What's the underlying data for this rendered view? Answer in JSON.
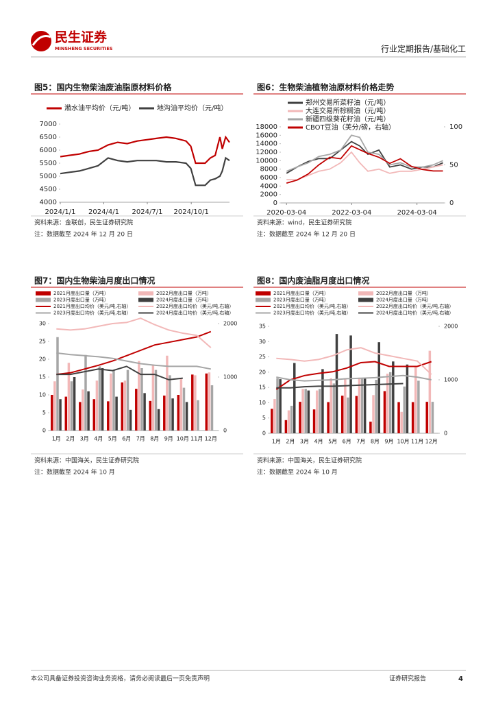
{
  "header": {
    "brand": "民生证券",
    "brand_en": "MINSHENG SECURITIES",
    "report_type": "行业定期报告/基础化工"
  },
  "chart_data": [
    {
      "type": "line",
      "title": "图5：国内生物柴油废油脂原材料价格",
      "source": "资料来源：金联创，民生证券研究院",
      "note": "注：数据截至 2024 年 12 月 20 日",
      "x": [
        "2024-01-01",
        "2024-01-20",
        "2024-02-10",
        "2024-03-01",
        "2024-03-20",
        "2024-04-10",
        "2024-04-30",
        "2024-05-20",
        "2024-06-10",
        "2024-06-30",
        "2024-07-20",
        "2024-08-10",
        "2024-08-30",
        "2024-09-20",
        "2024-09-30",
        "2024-10-10",
        "2024-10-30",
        "2024-11-10",
        "2024-11-20",
        "2024-11-30",
        "2024-12-05",
        "2024-12-12",
        "2024-12-20"
      ],
      "series": [
        {
          "name": "潲水油平均价（元/吨）",
          "color": "#c00000",
          "values": [
            5750,
            5800,
            5850,
            5950,
            6000,
            6200,
            6300,
            6250,
            6350,
            6400,
            6450,
            6500,
            6450,
            6350,
            6150,
            5500,
            5500,
            5700,
            5800,
            6500,
            6050,
            6500,
            6300
          ]
        },
        {
          "name": "地沟油平均价（元/吨）",
          "color": "#404040",
          "values": [
            5100,
            5150,
            5200,
            5300,
            5400,
            5700,
            5600,
            5550,
            5600,
            5600,
            5600,
            5550,
            5550,
            5500,
            5300,
            4650,
            4650,
            4850,
            4900,
            5000,
            5200,
            5700,
            5600
          ]
        }
      ],
      "xlim": [
        "2024-01-01",
        "2024-12-20"
      ],
      "xticks": [
        {
          "value": "2024-01-01",
          "label": "2024/1/1"
        },
        {
          "value": "2024-04-01",
          "label": "2024/4/1"
        },
        {
          "value": "2024-07-01",
          "label": "2024/7/1"
        },
        {
          "value": "2024-10-01",
          "label": "2024/10/1"
        }
      ],
      "ylim": [
        4000,
        7000
      ],
      "yticks": [
        4000,
        4500,
        5000,
        5500,
        6000,
        6500,
        7000
      ],
      "grid": false
    },
    {
      "type": "line",
      "title": "图6：生物柴油植物油原材料价格走势",
      "source": "资料来源：wind，民生证券研究院",
      "note": "注：数据截至 2024 年 12 月 20 日",
      "x": [
        "2020-03-04",
        "2020-07-01",
        "2020-11-02",
        "2021-03-01",
        "2021-07-01",
        "2021-11-01",
        "2022-03-01",
        "2022-06-01",
        "2022-09-01",
        "2023-01-03",
        "2023-05-04",
        "2023-09-01",
        "2024-01-02",
        "2024-05-06",
        "2024-09-02",
        "2024-12-20"
      ],
      "series": [
        {
          "name": "郑州交易所菜籽油（元/吨）",
          "color": "#404040",
          "values": [
            7000,
            8500,
            9800,
            10500,
            10500,
            12500,
            14500,
            13500,
            11500,
            12500,
            8500,
            9000,
            8000,
            8500,
            8500,
            9500
          ]
        },
        {
          "name": "大连交易所棕榈油（元/吨）",
          "color": "#f2b8b8",
          "values": [
            5500,
            5500,
            6500,
            7500,
            8000,
            9500,
            12000,
            9500,
            7500,
            8000,
            7000,
            7500,
            7500,
            8000,
            8500,
            9000
          ]
        },
        {
          "name": "新疆四级葵花籽油（元/吨）",
          "color": "#a6a6a6",
          "values": [
            7500,
            8500,
            9500,
            11000,
            11500,
            12500,
            16000,
            15500,
            12000,
            11500,
            9000,
            9500,
            8500,
            8500,
            9000,
            10000
          ]
        },
        {
          "name": "CBOT豆油（美分/磅，右轴）",
          "color": "#c00000",
          "axis": "y2",
          "values": [
            26,
            30,
            38,
            50,
            60,
            58,
            75,
            70,
            65,
            60,
            52,
            58,
            48,
            44,
            42,
            42
          ]
        }
      ],
      "xlim": [
        "2020-01-01",
        "2024-12-31"
      ],
      "xticks": [
        "2020-03-04",
        "2022-03-04",
        "2024-03-04"
      ],
      "ylim": [
        0,
        18000
      ],
      "yticks": [
        0,
        2000,
        4000,
        6000,
        8000,
        10000,
        12000,
        14000,
        16000,
        18000
      ],
      "y2lim": [
        0,
        100
      ],
      "y2ticks": [
        0,
        50,
        100
      ],
      "grid": false
    },
    {
      "type": "bar",
      "title": "图7：国内生物柴油月度出口情况",
      "source": "资料来源：中国海关，民生证券研究院",
      "note": "注：数据截至 2024 年 10 月",
      "categories": [
        "1月",
        "2月",
        "3月",
        "4月",
        "5月",
        "6月",
        "7月",
        "8月",
        "9月",
        "10月",
        "11月",
        "12月"
      ],
      "series": [
        {
          "name": "2021月度出口量（万吨）",
          "color": "#c00000",
          "values": [
            10,
            9.5,
            8,
            8.8,
            8.2,
            13.5,
            11.7,
            8.3,
            9.8,
            10,
            15.7,
            16
          ]
        },
        {
          "name": "2022月度出口量（万吨）",
          "color": "#f2b8b8",
          "values": [
            13.8,
            19,
            11.5,
            14,
            16,
            14,
            19.5,
            18.3,
            21,
            14.8,
            15.5,
            16.3
          ]
        },
        {
          "name": "2023月度出口量（万吨）",
          "color": "#a6a6a6",
          "values": [
            26.2,
            13.8,
            21.2,
            18,
            17,
            17,
            17.5,
            17,
            15.5,
            12,
            8.5,
            12.7
          ]
        },
        {
          "name": "2024月度出口量（万吨）",
          "color": "#404040",
          "values": [
            8.8,
            15,
            11,
            17.5,
            9.5,
            5.8,
            10.5,
            6,
            9,
            8,
            null,
            null
          ]
        },
        {
          "name": "2021月度出口均价（美元/吨,右轴）",
          "color": "#c00000",
          "type": "line",
          "axis": "y2",
          "values": [
            1050,
            1080,
            1150,
            1220,
            1300,
            1400,
            1500,
            1600,
            1650,
            1700,
            1750,
            1850
          ]
        },
        {
          "name": "2022月度出口均价（美元/吨,右轴）",
          "color": "#f2b8b8",
          "type": "line",
          "axis": "y2",
          "values": [
            1900,
            1880,
            1900,
            1950,
            2000,
            2020,
            2100,
            1980,
            1880,
            1820,
            1780,
            1550
          ]
        },
        {
          "name": "2023月度出口均价（美元/吨,右轴）",
          "color": "#a6a6a6",
          "type": "line",
          "axis": "y2",
          "values": [
            1450,
            1420,
            1400,
            1380,
            1350,
            1300,
            1250,
            1220,
            1200,
            1200,
            1200,
            1150
          ]
        },
        {
          "name": "2024月度出口均价（美元/吨,右轴）",
          "color": "#404040",
          "type": "line",
          "axis": "y2",
          "values": [
            1050,
            1050,
            1100,
            1150,
            1120,
            1200,
            1050,
            1050,
            950,
            980,
            null,
            null
          ]
        }
      ],
      "ylim": [
        0,
        30
      ],
      "yticks": [
        0,
        5,
        10,
        15,
        20,
        25,
        30
      ],
      "y2lim": [
        0,
        2000
      ],
      "y2ticks": [
        0,
        1000,
        2000
      ],
      "grid": false
    },
    {
      "type": "bar",
      "title": "图8：国内废油脂月度出口情况",
      "source": "资料来源：中国海关，民生证券研究院",
      "note": "注：数据截至 2024 年 10 月",
      "categories": [
        "1月",
        "2月",
        "3月",
        "4月",
        "5月",
        "6月",
        "7月",
        "8月",
        "9月",
        "10月",
        "11月",
        "12月"
      ],
      "series": [
        {
          "name": "2021月度出口量（万吨）",
          "color": "#c00000",
          "values": [
            8,
            4.3,
            10.3,
            7.8,
            10.2,
            12.3,
            12.2,
            3.8,
            13.8,
            10.2,
            10.2,
            10.3
          ]
        },
        {
          "name": "2022月度出口量（万吨）",
          "color": "#f2b8b8",
          "values": [
            11.2,
            7.5,
            14.5,
            14,
            18,
            18,
            18.2,
            12.5,
            19.5,
            7,
            22,
            27
          ]
        },
        {
          "name": "2023月度出口量（万吨）",
          "color": "#a6a6a6",
          "values": [
            18,
            9,
            14.5,
            14.5,
            16.3,
            11.7,
            18,
            17.5,
            20,
            15.3,
            17.2,
            10.3
          ]
        },
        {
          "name": "2024月度出口量（万吨）",
          "color": "#404040",
          "values": [
            17.7,
            23,
            14,
            21,
            32.5,
            32,
            18,
            29.8,
            23.5,
            22.5,
            null,
            null
          ]
        },
        {
          "name": "2021月度出口均价（美元/吨,右轴）",
          "color": "#c00000",
          "type": "line",
          "axis": "y2",
          "values": [
            820,
            1000,
            1080,
            1120,
            1150,
            1220,
            1320,
            1340,
            1250,
            1250,
            1250,
            1340
          ]
        },
        {
          "name": "2022月度出口均价（美元/吨,右轴）",
          "color": "#f2b8b8",
          "type": "line",
          "axis": "y2",
          "values": [
            1400,
            1380,
            1350,
            1380,
            1450,
            1560,
            1600,
            1500,
            1450,
            1400,
            1350,
            1100
          ]
        },
        {
          "name": "2023月度出口均价（美元/吨,右轴）",
          "color": "#a6a6a6",
          "type": "line",
          "axis": "y2",
          "values": [
            1050,
            1000,
            980,
            990,
            1000,
            1020,
            1030,
            1040,
            1060,
            1080,
            1050,
            1000
          ]
        },
        {
          "name": "2024月度出口均价（美元/吨,右轴）",
          "color": "#404040",
          "type": "line",
          "axis": "y2",
          "values": [
            850,
            850,
            870,
            880,
            880,
            890,
            900,
            910,
            920,
            930,
            null,
            null
          ]
        }
      ],
      "ylim": [
        0,
        35
      ],
      "yticks": [
        0,
        5,
        10,
        15,
        20,
        25,
        30,
        35
      ],
      "y2lim": [
        0,
        2000
      ],
      "y2ticks": [
        0,
        1000,
        2000
      ],
      "grid": false
    }
  ],
  "footer": {
    "disclaimer": "本公司具备证券投资咨询业务资格，请务必阅读最后一页免责声明",
    "doc_type": "证券研究报告",
    "page": "4"
  }
}
